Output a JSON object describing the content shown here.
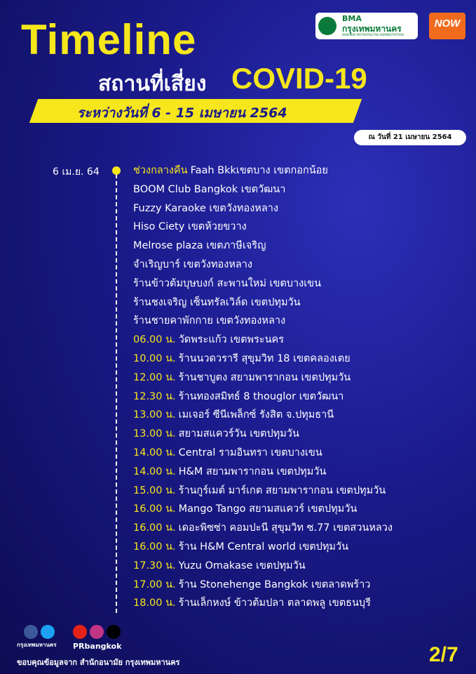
{
  "header": {
    "title": "Timeline",
    "subtitle_thai": "สถานที่เสี่ยง",
    "subtitle_covid": "COVID-19",
    "date_range": "ระหว่างวันที่ 6 - 15 เมษายน 2564",
    "as_of": "ณ วันที่ 21 เมษายน 2564",
    "logo_bma": "BMA",
    "logo_bma_thai": "กรุงเทพมหานคร",
    "logo_bma_english": "BANGKOK METROPOLITAN ADMINISTRATION",
    "logo_now": "NOW"
  },
  "timeline": {
    "date": "6 เม.ย. 64",
    "items": [
      {
        "time": "ช่วงกลางคืน",
        "text": "Faah Bkkเขตบาง เขตกอกน้อย"
      },
      {
        "text": "BOOM Club Bangkok เขตวัฒนา"
      },
      {
        "text": "Fuzzy Karaoke เขตวังทองหลาง"
      },
      {
        "text": "Hiso Ciety เขตห้วยขวาง"
      },
      {
        "text": "Melrose plaza เขตภาษีเจริญ"
      },
      {
        "text": "จำเริญบาร์ เขตวังทองหลาง"
      },
      {
        "text": "ร้านข้าวต้มบุษบงก์ สะพานใหม่ เขตบางเขน"
      },
      {
        "text": "ร้านชงเจริญ เซ็นทรัลเวิล์ด เขตปทุมวัน"
      },
      {
        "text": "ร้านชายคาพักกาย เขตวังทองหลาง"
      },
      {
        "time": "06.00 น.",
        "text": "วัดพระแก้ว เขตพระนคร"
      },
      {
        "time": "10.00 น.",
        "text": "ร้านนวดวรารี สุขุมวิท 18 เขตคลองเตย"
      },
      {
        "time": "12.00 น.",
        "text": "ร้านชาบูตง สยามพารากอน เขตปทุมวัน"
      },
      {
        "time": "12.30 น.",
        "text": "ร้านทองสมิทธ์ 8 thouglor เขตวัฒนา"
      },
      {
        "time": "13.00 น.",
        "text": "เมเจอร์ ซีนีเพล็กซ์ รังสิต จ.ปทุมธานี"
      },
      {
        "time": "13.00 น.",
        "text": "สยามสแควร์วัน เขตปทุมวัน"
      },
      {
        "time": "14.00 น.",
        "text": "Central รามอินทรา เขตบางเขน"
      },
      {
        "time": "14.00 น.",
        "text": "H&M สยามพารากอน เขตปทุมวัน"
      },
      {
        "time": "15.00 น.",
        "text": "ร้านกูร์เมต์ มาร์เกต สยามพารากอน เขตปทุมวัน"
      },
      {
        "time": "16.00 น.",
        "text": "Mango Tango สยามสแควร์ เขตปทุมวัน"
      },
      {
        "time": "16.00 น.",
        "text": "เดอะพิซซ่า คอมปะนี สุขุมวิท ซ.77 เขตสวนหลวง"
      },
      {
        "time": "16.00 น.",
        "text": "ร้าน H&M Central world เขตปทุมวัน"
      },
      {
        "time": "17.30 น.",
        "text": "Yuzu Omakase เขตปทุมวัน"
      },
      {
        "time": "17.00 น.",
        "text": "ร้าน Stonehenge Bangkok เขตลาดพร้าว"
      },
      {
        "time": "18.00 น.",
        "text": "ร้านเล็กหงษ์ ข้าวต้มปลา ตลาดพลู เขตธนบุรี"
      }
    ]
  },
  "footer": {
    "org": "กรุงเทพมหานคร",
    "social": "PRbangkok",
    "source": "ขอบคุณข้อมูลจาก สำนักอนามัย กรุงเทพมหานคร",
    "page": "2/7"
  }
}
